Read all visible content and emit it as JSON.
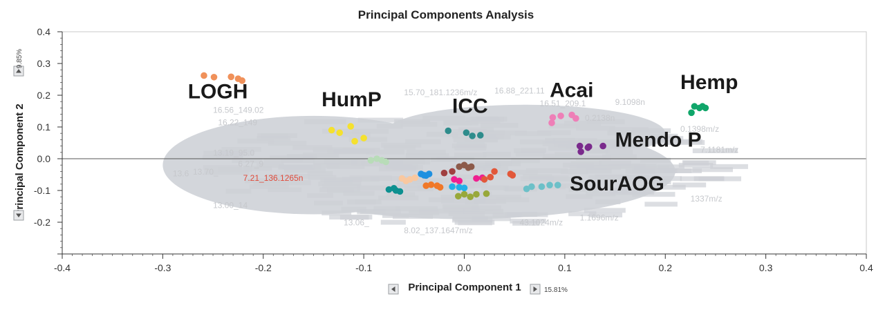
{
  "chart_data": {
    "type": "scatter",
    "title": "Principal Components Analysis",
    "xlabel": "Principal Component 1",
    "ylabel": "Principal Component 2",
    "x_variance": "15.81%",
    "y_variance": "9.85%",
    "xlim": [
      -0.4,
      0.4
    ],
    "ylim": [
      -0.3,
      0.4
    ],
    "xticks": [
      "-0.4",
      "-0.3",
      "-0.2",
      "-0.1",
      "0.0",
      "0.1",
      "0.2",
      "0.3",
      "0.4"
    ],
    "yticks": [
      "-0.2",
      "-0.1",
      "0.0",
      "0.1",
      "0.2",
      "0.3",
      "0.4"
    ],
    "grid": false,
    "zero_line": true,
    "loadings_cloud_color": "#d3d6db",
    "loading_labels": [
      {
        "text": "15.70_181.1236m/z",
        "x": -0.06,
        "y": 0.2
      },
      {
        "text": "16.88_221.11",
        "x": 0.03,
        "y": 0.205
      },
      {
        "text": "16.56_149.02",
        "x": -0.25,
        "y": 0.145
      },
      {
        "text": "16.22_149",
        "x": -0.245,
        "y": 0.105
      },
      {
        "text": "13.19_95.0",
        "x": -0.25,
        "y": 0.01
      },
      {
        "text": "16.51_209.1",
        "x": 0.075,
        "y": 0.165
      },
      {
        "text": "6.27_9",
        "x": -0.225,
        "y": -0.025
      },
      {
        "text": "13.6",
        "x": -0.29,
        "y": -0.055
      },
      {
        "text": "13.70_",
        "x": -0.27,
        "y": -0.05
      },
      {
        "text": "7.21_136.1265n",
        "x": -0.22,
        "y": -0.07,
        "highlight": true
      },
      {
        "text": "13.00_14",
        "x": -0.25,
        "y": -0.155
      },
      {
        "text": "8.02_137.1647m/z",
        "x": -0.06,
        "y": -0.235
      },
      {
        "text": "13.06_",
        "x": -0.12,
        "y": -0.21
      },
      {
        "text": "7.1181m/z",
        "x": 0.235,
        "y": 0.02
      },
      {
        "text": "0.1398m/z",
        "x": 0.215,
        "y": 0.085
      },
      {
        "text": "9.1098n",
        "x": 0.15,
        "y": 0.17
      },
      {
        "text": "0.2138n",
        "x": 0.12,
        "y": 0.12
      },
      {
        "text": "1337m/z",
        "x": 0.225,
        "y": -0.135
      },
      {
        "text": "1.1696m/z",
        "x": 0.115,
        "y": -0.195
      },
      {
        "text": "43.1024m/z",
        "x": 0.055,
        "y": -0.21
      }
    ],
    "groups": [
      {
        "name": "LOGH",
        "color": "#f0915a",
        "label_pos": [
          -0.275,
          0.19
        ],
        "points": [
          [
            -0.259,
            0.262
          ],
          [
            -0.249,
            0.257
          ],
          [
            -0.232,
            0.258
          ],
          [
            -0.225,
            0.252
          ],
          [
            -0.221,
            0.246
          ]
        ]
      },
      {
        "name": "HumP",
        "color": "#f5e12e",
        "label_pos": [
          -0.142,
          0.165
        ],
        "points": [
          [
            -0.132,
            0.09
          ],
          [
            -0.124,
            0.082
          ],
          [
            -0.113,
            0.102
          ],
          [
            -0.109,
            0.055
          ],
          [
            -0.1,
            0.065
          ]
        ]
      },
      {
        "name": "ICC",
        "color": "#2e8c8c",
        "label_pos": [
          -0.012,
          0.145
        ],
        "points": [
          [
            -0.016,
            0.088
          ],
          [
            0.002,
            0.082
          ],
          [
            0.008,
            0.072
          ],
          [
            0.016,
            0.074
          ]
        ]
      },
      {
        "name": "Acai",
        "color": "#ee7fb7",
        "label_pos": [
          0.085,
          0.195
        ],
        "points": [
          [
            0.087,
            0.113
          ],
          [
            0.088,
            0.13
          ],
          [
            0.096,
            0.135
          ],
          [
            0.107,
            0.138
          ],
          [
            0.111,
            0.127
          ]
        ]
      },
      {
        "name": "Hemp",
        "color": "#10a66a",
        "label_pos": [
          0.215,
          0.22
        ],
        "points": [
          [
            0.226,
            0.145
          ],
          [
            0.229,
            0.165
          ],
          [
            0.234,
            0.16
          ],
          [
            0.24,
            0.16
          ],
          [
            0.237,
            0.165
          ]
        ]
      },
      {
        "name": "Mendo P",
        "color": "#7a2a8c",
        "label_pos": [
          0.15,
          0.038
        ],
        "points": [
          [
            0.115,
            0.04
          ],
          [
            0.116,
            0.022
          ],
          [
            0.123,
            0.035
          ],
          [
            0.124,
            0.038
          ],
          [
            0.138,
            0.04
          ]
        ]
      },
      {
        "name": "SourAOG",
        "color": "#6cc0c8",
        "label_pos": [
          0.105,
          -0.1
        ],
        "points": [
          [
            0.062,
            -0.095
          ],
          [
            0.067,
            -0.088
          ],
          [
            0.077,
            -0.088
          ],
          [
            0.085,
            -0.083
          ],
          [
            0.093,
            -0.083
          ]
        ]
      },
      {
        "name": "",
        "color": "#b8dcb8",
        "points": [
          [
            -0.093,
            -0.005
          ],
          [
            -0.087,
            0.0
          ],
          [
            -0.082,
            -0.005
          ],
          [
            -0.078,
            -0.01
          ]
        ]
      },
      {
        "name": "",
        "color": "#0c9090",
        "points": [
          [
            -0.075,
            -0.097
          ],
          [
            -0.07,
            -0.093
          ],
          [
            -0.068,
            -0.1
          ],
          [
            -0.064,
            -0.103
          ]
        ]
      },
      {
        "name": "",
        "color": "#f9c8a0",
        "points": [
          [
            -0.062,
            -0.062
          ],
          [
            -0.058,
            -0.07
          ],
          [
            -0.054,
            -0.065
          ],
          [
            -0.049,
            -0.06
          ]
        ]
      },
      {
        "name": "",
        "color": "#1e90e0",
        "points": [
          [
            -0.043,
            -0.048
          ],
          [
            -0.04,
            -0.052
          ],
          [
            -0.035,
            -0.048
          ],
          [
            -0.038,
            -0.053
          ]
        ]
      },
      {
        "name": "",
        "color": "#f07828",
        "points": [
          [
            -0.038,
            -0.085
          ],
          [
            -0.033,
            -0.082
          ],
          [
            -0.027,
            -0.085
          ],
          [
            -0.024,
            -0.09
          ]
        ]
      },
      {
        "name": "",
        "color": "#a04040",
        "points": [
          [
            -0.02,
            -0.045
          ],
          [
            -0.012,
            -0.04
          ]
        ]
      },
      {
        "name": "",
        "color": "#ee2090",
        "points": [
          [
            -0.01,
            -0.065
          ],
          [
            -0.005,
            -0.07
          ],
          [
            0.012,
            -0.062
          ],
          [
            0.018,
            -0.06
          ]
        ]
      },
      {
        "name": "",
        "color": "#8c5a4a",
        "points": [
          [
            -0.005,
            -0.025
          ],
          [
            0.0,
            -0.02
          ],
          [
            0.004,
            -0.028
          ],
          [
            0.007,
            -0.025
          ]
        ]
      },
      {
        "name": "",
        "color": "#20b0e8",
        "points": [
          [
            -0.012,
            -0.088
          ],
          [
            -0.005,
            -0.09
          ],
          [
            0.0,
            -0.092
          ]
        ]
      },
      {
        "name": "",
        "color": "#98a83a",
        "points": [
          [
            -0.006,
            -0.118
          ],
          [
            0.0,
            -0.112
          ],
          [
            0.006,
            -0.12
          ],
          [
            0.012,
            -0.112
          ],
          [
            0.022,
            -0.11
          ]
        ]
      },
      {
        "name": "",
        "color": "#e2583a",
        "points": [
          [
            0.02,
            -0.065
          ],
          [
            0.026,
            -0.058
          ],
          [
            0.03,
            -0.04
          ],
          [
            0.046,
            -0.048
          ],
          [
            0.048,
            -0.052
          ]
        ]
      }
    ]
  }
}
